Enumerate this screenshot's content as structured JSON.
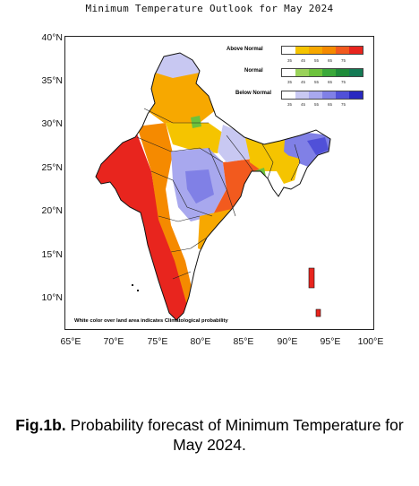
{
  "title": "Minimum Temperature Outlook for May 2024",
  "lat_labels": [
    "40°N",
    "35°N",
    "30°N",
    "25°N",
    "20°N",
    "15°N",
    "10°N"
  ],
  "lon_labels": [
    "65°E",
    "70°E",
    "75°E",
    "80°E",
    "85°E",
    "90°E",
    "95°E",
    "100°E"
  ],
  "legend": {
    "above": {
      "label": "Above Normal",
      "colors": [
        "#ffffff",
        "#f5c400",
        "#f7a800",
        "#f58a00",
        "#f25a1e",
        "#e8251e"
      ]
    },
    "normal": {
      "label": "Normal",
      "colors": [
        "#ffffff",
        "#9ad25a",
        "#6cc23c",
        "#3aa83a",
        "#1e8c3a",
        "#157a55"
      ]
    },
    "below": {
      "label": "Below Normal",
      "colors": [
        "#ffffff",
        "#c8c8f2",
        "#a8a8ee",
        "#8080e6",
        "#5050d8",
        "#2828c0"
      ]
    },
    "ticks": [
      "35",
      "45",
      "55",
      "65",
      "75"
    ]
  },
  "note": "White color over land area indicates Climatological probability",
  "caption": {
    "prefix": "Fig.1b.",
    "text": " Probability forecast of Minimum Temperature for May 2024."
  }
}
